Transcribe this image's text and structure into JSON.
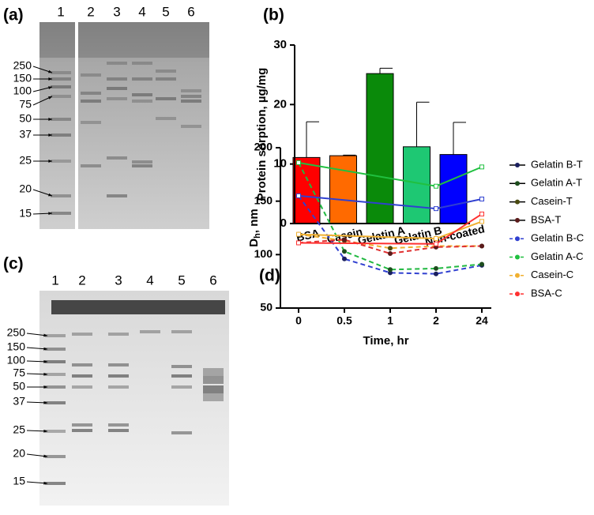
{
  "gels": [
    {
      "label": "(a)",
      "lanes": [
        "1",
        "2",
        "3",
        "4",
        "5",
        "6"
      ],
      "markers": [
        "250",
        "150",
        "100",
        "75",
        "50",
        "37",
        "25",
        "20",
        "15"
      ]
    },
    {
      "label": "(c)",
      "lanes": [
        "1",
        "2",
        "3",
        "4",
        "5",
        "6"
      ],
      "markers": [
        "250",
        "150",
        "100",
        "75",
        "50",
        "37",
        "25",
        "20",
        "15"
      ]
    }
  ],
  "chart_data": [
    {
      "type": "bar",
      "label": "(b)",
      "y_label": "Protein sorption, µg/mg",
      "categories": [
        "BSA",
        "Casein",
        "Gelatin A",
        "Gelatin B",
        "Non-coated"
      ],
      "values": [
        11.1,
        11.4,
        25.2,
        12.9,
        11.6
      ],
      "errors": [
        6.0,
        0.1,
        0.9,
        7.5,
        5.4
      ],
      "colors": [
        "#ff0000",
        "#ff6a00",
        "#0a8a0a",
        "#1ec873",
        "#0000ff"
      ],
      "ylim": [
        0,
        30
      ],
      "yticks": [
        0,
        10,
        20,
        30
      ]
    },
    {
      "type": "line",
      "label": "(d)",
      "y_label": {
        "main": "D",
        "sub": "h",
        "unit": ", nm"
      },
      "x_label": "Time, hr",
      "categories": [
        "0",
        "0.5",
        "1",
        "2",
        "24"
      ],
      "ylim": [
        50,
        200
      ],
      "yticks": [
        50,
        100,
        150,
        200
      ],
      "series": [
        {
          "name": "Gelatin B-T",
          "color": "#3040d0",
          "marker_color": "#1a1f5e",
          "dashed": true,
          "x": [
            "0",
            "0.5",
            "1",
            "2",
            "24"
          ],
          "values": [
            155,
            96,
            83,
            82,
            90
          ]
        },
        {
          "name": "Gelatin A-T",
          "color": "#20b840",
          "marker_color": "#1d4d1d",
          "dashed": true,
          "x": [
            "0",
            "0.5",
            "1",
            "2",
            "24"
          ],
          "values": [
            186,
            103,
            86,
            87,
            91
          ]
        },
        {
          "name": "Casein-T",
          "color": "#f0b030",
          "marker_color": "#4a4a10",
          "dashed": true,
          "x": [
            "0",
            "0.5",
            "1",
            "2",
            "24"
          ],
          "values": [
            119,
            113,
            106,
            108,
            108
          ]
        },
        {
          "name": "BSA-T",
          "color": "#e03030",
          "marker_color": "#5a1a1a",
          "dashed": true,
          "x": [
            "0",
            "0.5",
            "1",
            "2",
            "24"
          ],
          "values": [
            111,
            114,
            101,
            107,
            108
          ]
        },
        {
          "name": "Gelatin B-C",
          "color": "#3040d0",
          "marker_color": "#3040d0",
          "dashed": false,
          "x": [
            "0",
            "2",
            "24"
          ],
          "values": [
            155,
            143,
            152
          ]
        },
        {
          "name": "Gelatin A-C",
          "color": "#20c040",
          "marker_color": "#20c040",
          "dashed": false,
          "x": [
            "0",
            "2",
            "24"
          ],
          "values": [
            186,
            164,
            182
          ]
        },
        {
          "name": "Casein-C",
          "color": "#f0b030",
          "marker_color": "#f0b030",
          "dashed": false,
          "x": [
            "0",
            "2",
            "24"
          ],
          "values": [
            119,
            115,
            131
          ]
        },
        {
          "name": "BSA-C",
          "color": "#ff3030",
          "marker_color": "#ff3030",
          "dashed": false,
          "x": [
            "0",
            "2",
            "24"
          ],
          "values": [
            111,
            110,
            138
          ]
        }
      ]
    }
  ]
}
